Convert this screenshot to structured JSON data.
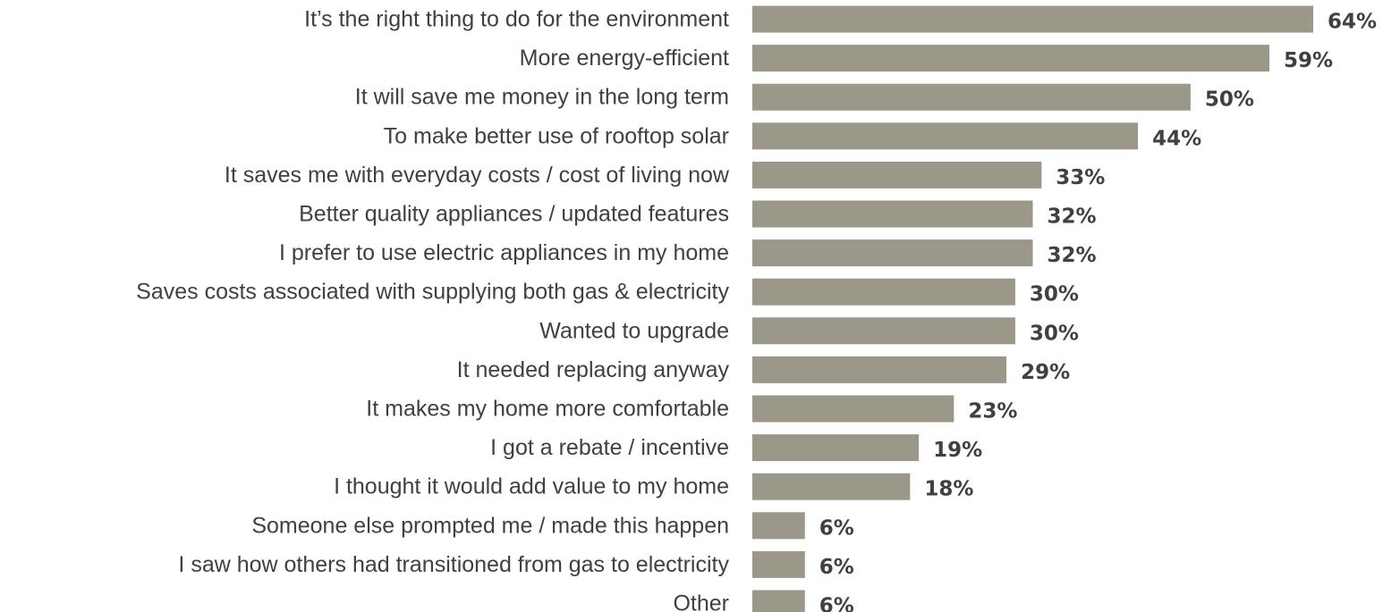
{
  "chart_data": {
    "type": "bar",
    "orientation": "horizontal",
    "title": "",
    "xlabel": "",
    "ylabel": "",
    "xlim": [
      0,
      64
    ],
    "grid": false,
    "bar_color": "#9b988a",
    "label_color": "#404040",
    "value_suffix": "%",
    "categories": [
      "It’s the right thing to do for the environment",
      "More energy-efficient",
      "It will save me money in the long term",
      "To make better use of rooftop solar",
      "It saves me with everyday costs / cost of living now",
      "Better quality appliances / updated features",
      "I prefer to use electric appliances in my home",
      "Saves costs associated with supplying both gas & electricity",
      "Wanted to upgrade",
      "It needed replacing anyway",
      "It makes my home more comfortable",
      "I got a rebate / incentive",
      "I thought it would add value to my home",
      "Someone else prompted me / made this happen",
      "I saw how others had transitioned from gas to electricity",
      "Other"
    ],
    "values": [
      64,
      59,
      50,
      44,
      33,
      32,
      32,
      30,
      30,
      29,
      23,
      19,
      18,
      6,
      6,
      6
    ],
    "value_labels": [
      "64%",
      "59%",
      "50%",
      "44%",
      "33%",
      "32%",
      "32%",
      "30%",
      "30%",
      "29%",
      "23%",
      "19%",
      "18%",
      "6%",
      "6%",
      "6%"
    ]
  }
}
